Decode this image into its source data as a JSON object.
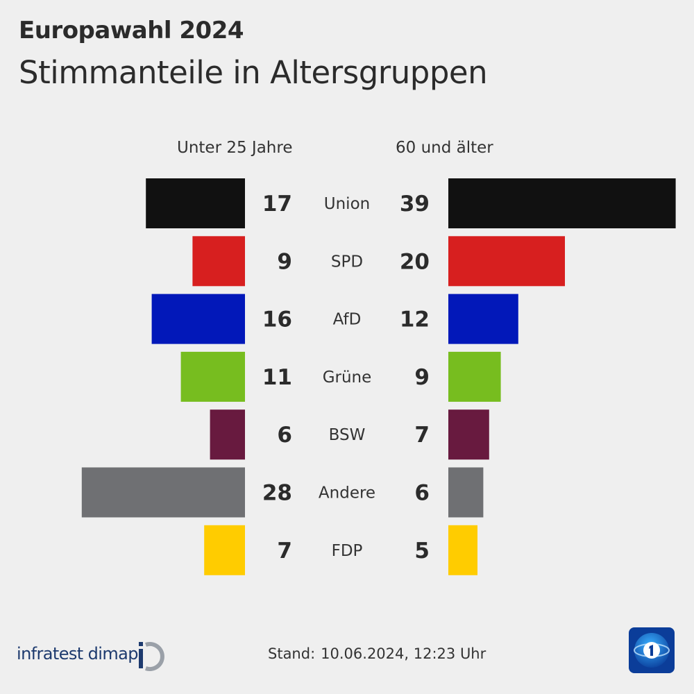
{
  "header": {
    "title": "Europawahl 2024",
    "subtitle": "Stimmanteile in Altersgruppen"
  },
  "chart_data": {
    "type": "bar",
    "orientation": "horizontal-diverging",
    "title": "Europawahl 2024",
    "subtitle": "Stimmanteile in Altersgruppen",
    "unit": "%",
    "categories": [
      "Union",
      "SPD",
      "AfD",
      "Grüne",
      "BSW",
      "Andere",
      "FDP"
    ],
    "colors": [
      "#111111",
      "#d71f1f",
      "#0218b9",
      "#77bd1f",
      "#681a3f",
      "#6f7073",
      "#ffcc00"
    ],
    "series": [
      {
        "name": "Unter 25 Jahre",
        "side": "left",
        "values": [
          17,
          9,
          16,
          11,
          6,
          28,
          7
        ]
      },
      {
        "name": "60 und älter",
        "side": "right",
        "values": [
          39,
          20,
          12,
          9,
          7,
          6,
          5
        ]
      }
    ]
  },
  "footer": {
    "source": "infratest dimap",
    "stand_label": "Stand:",
    "stand_date": "10.06.2024, 12:23 Uhr",
    "broadcaster_logo": "ard-tagesschau-1-icon"
  }
}
